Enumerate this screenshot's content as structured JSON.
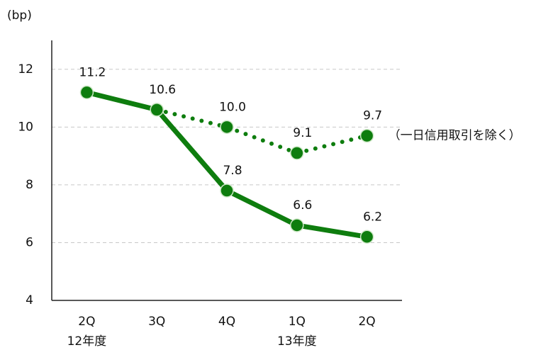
{
  "chart_data": {
    "type": "line",
    "y_label": "(bp)",
    "categories": [
      "2Q",
      "3Q",
      "4Q",
      "1Q",
      "2Q"
    ],
    "category_sublabels": [
      "12年度",
      null,
      null,
      "13年度",
      null
    ],
    "series": [
      {
        "color": "#0e7d0e",
        "style": "solid",
        "values": [
          11.2,
          10.6,
          7.8,
          6.6,
          6.2
        ],
        "value_labels": [
          "11.2",
          "10.6",
          "7.8",
          "6.6",
          "6.2"
        ]
      },
      {
        "name": "（一日信用取引を除く）",
        "color": "#0e7d0e",
        "style": "dotted",
        "values": [
          null,
          10.6,
          10.0,
          9.1,
          9.7
        ],
        "value_labels": [
          null,
          null,
          "10.0",
          "9.1",
          "9.7"
        ]
      }
    ],
    "ylim": [
      4,
      13
    ],
    "yticks": [
      4,
      6,
      8,
      10,
      12
    ],
    "grid": true
  }
}
